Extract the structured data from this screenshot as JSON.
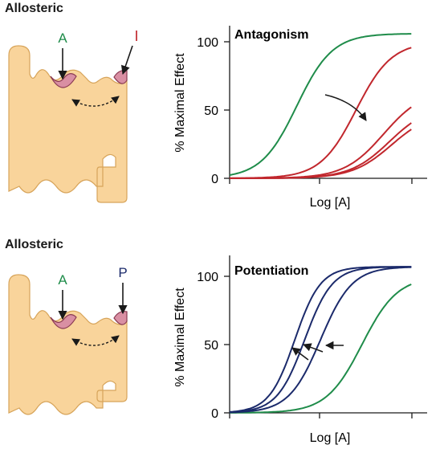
{
  "colors": {
    "agonist": "#1f8c4a",
    "antagonist": "#c1272d",
    "potentiator": "#1b2a6b",
    "receptor_fill": "#f9d49b",
    "receptor_stroke": "#d7a45a",
    "site_fill": "#d98fa3",
    "site_stroke": "#8a3a52",
    "axis": "#1a1a1a"
  },
  "panels": [
    {
      "heading": "Allosteric",
      "agonist_label": "A",
      "modulator_label": "I",
      "modulator_label_color": "#c1272d",
      "chart_title": "Antagonism"
    },
    {
      "heading": "Allosteric",
      "agonist_label": "A",
      "modulator_label": "P",
      "modulator_label_color": "#1b2a6b",
      "chart_title": "Potentiation"
    }
  ],
  "chart_data": [
    {
      "type": "line",
      "title": "Antagonism",
      "xlabel": "Log [A]",
      "ylabel": "% Maximal Effect",
      "ylim": [
        0,
        110
      ],
      "yticks": [
        0,
        50,
        100
      ],
      "x_axis_values": "none",
      "grid": false,
      "series": [
        {
          "color": "#1f8c4a",
          "max": 106,
          "ec50": 0.34,
          "slope": 0.09
        },
        {
          "color": "#c1272d",
          "max": 100,
          "ec50": 0.64,
          "slope": 0.09
        },
        {
          "color": "#c1272d",
          "max": 65,
          "ec50": 0.78,
          "slope": 0.1
        },
        {
          "color": "#c1272d",
          "max": 54,
          "ec50": 0.81,
          "slope": 0.1
        },
        {
          "color": "#c1272d",
          "max": 49,
          "ec50": 0.82,
          "slope": 0.1
        }
      ]
    },
    {
      "type": "line",
      "title": "Potentiation",
      "xlabel": "Log [A]",
      "ylabel": "% Maximal Effect",
      "ylim": [
        0,
        110
      ],
      "yticks": [
        0,
        50,
        100
      ],
      "x_axis_values": "none",
      "grid": false,
      "series": [
        {
          "color": "#1f8c4a",
          "max": 100,
          "ec50": 0.67,
          "slope": 0.09
        },
        {
          "color": "#1b2a6b",
          "max": 107,
          "ec50": 0.46,
          "slope": 0.08
        },
        {
          "color": "#1b2a6b",
          "max": 107,
          "ec50": 0.38,
          "slope": 0.07
        },
        {
          "color": "#1b2a6b",
          "max": 107,
          "ec50": 0.33,
          "slope": 0.065
        }
      ]
    }
  ]
}
